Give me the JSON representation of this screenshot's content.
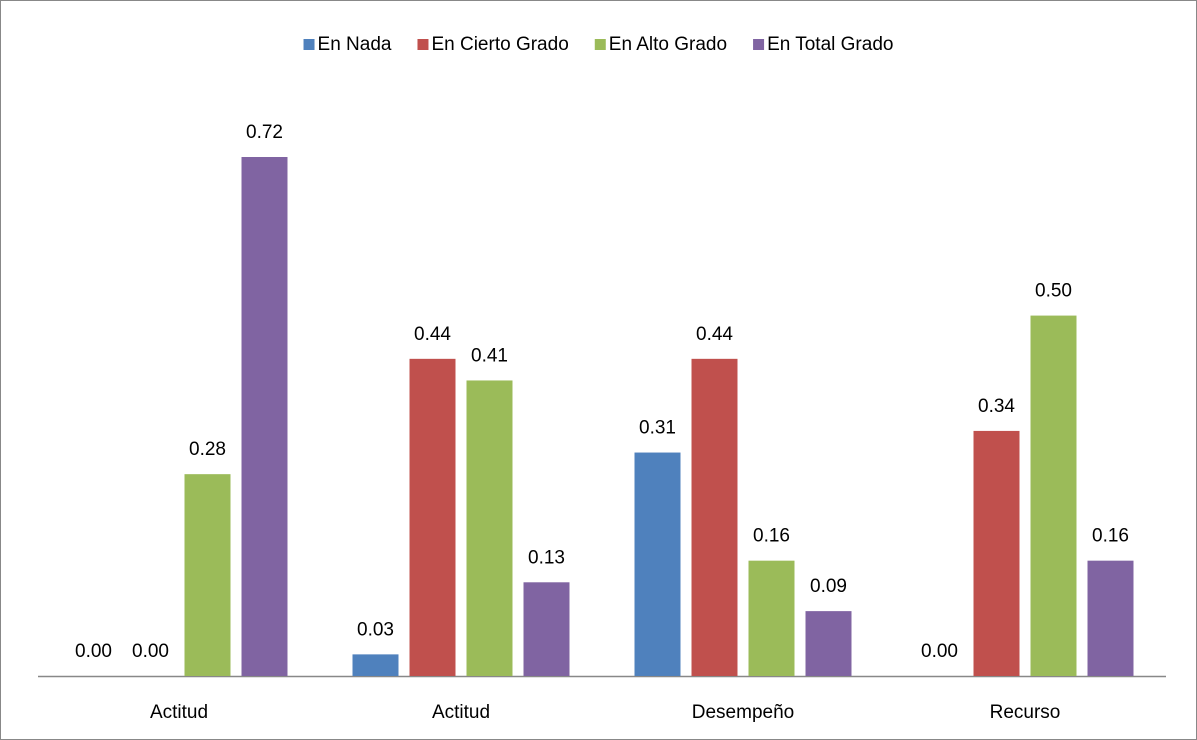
{
  "chart_data": {
    "type": "bar",
    "categories": [
      "Actitud",
      "Actitud",
      "Desempeño",
      "Recurso"
    ],
    "series": [
      {
        "name": "En Nada",
        "color": "#4f81bd",
        "values": [
          0,
          0.03,
          0.31,
          0
        ],
        "value_labels": [
          "0.00",
          "0.03",
          "0.31",
          "0.00"
        ]
      },
      {
        "name": "En Cierto Grado",
        "color": "#c0504d",
        "values": [
          0,
          0.44,
          0.44,
          0.34
        ],
        "value_labels": [
          "0.00",
          "0.44",
          "0.44",
          "0.34"
        ]
      },
      {
        "name": "En Alto Grado",
        "color": "#9bbb59",
        "values": [
          0.28,
          0.41,
          0.16,
          0.5
        ],
        "value_labels": [
          "0.28",
          "0.41",
          "0.16",
          "0.50"
        ]
      },
      {
        "name": "En Total Grado",
        "color": "#8064a2",
        "values": [
          0.72,
          0.13,
          0.09,
          0.16
        ],
        "value_labels": [
          "0.72",
          "0.13",
          "0.09",
          "0.16"
        ]
      }
    ],
    "legend": "top"
  }
}
